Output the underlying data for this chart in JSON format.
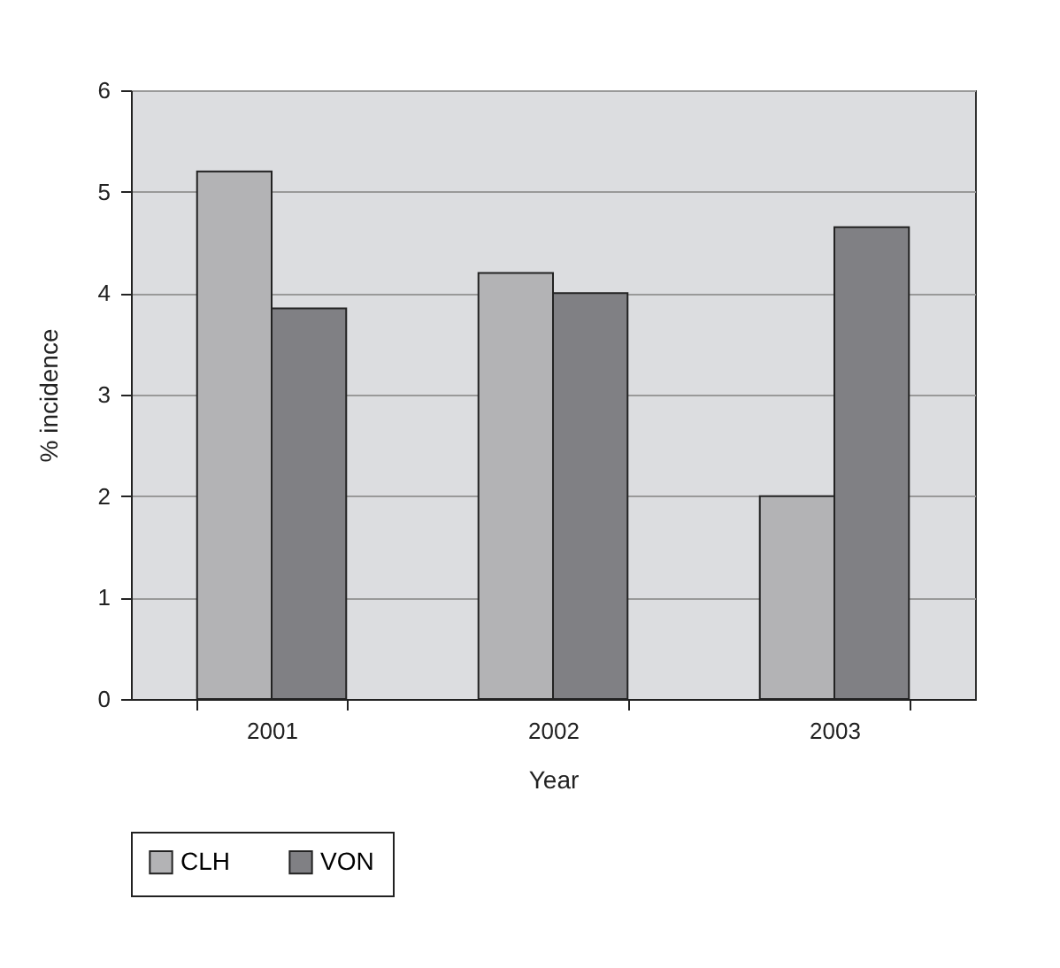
{
  "chart_data": {
    "type": "bar",
    "xlabel": "Year",
    "ylabel": "% incidence",
    "categories": [
      "2001",
      "2002",
      "2003"
    ],
    "series": [
      {
        "name": "CLH",
        "color": "#b3b3b5",
        "values": [
          5.2,
          4.2,
          2.0
        ]
      },
      {
        "name": "VON",
        "color": "#808084",
        "values": [
          3.85,
          4.0,
          4.65
        ]
      }
    ],
    "ylim": [
      0,
      6
    ],
    "yticks": [
      0,
      1,
      2,
      3,
      4,
      5,
      6
    ],
    "grid": "y",
    "legend": "bottom"
  }
}
